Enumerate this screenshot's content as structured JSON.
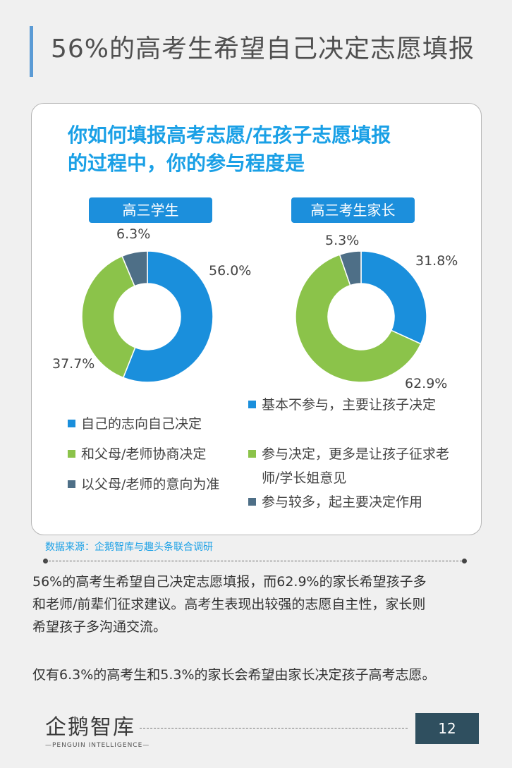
{
  "page": {
    "title": "56%的高考生希望自己决定志愿填报",
    "question_line1": "你如何填报高考志愿/在孩子志愿填报",
    "question_line2": "的过程中，你的参与程度是",
    "source": "数据来源：企鹅智库与趣头条联合调研",
    "paragraph1_line1": "56%的高考生希望自己决定志愿填报，而62.9%的家长希望孩子多",
    "paragraph1_line2": "和老师/前辈们征求建议。高考生表现出较强的志愿自主性，家长则",
    "paragraph1_line3": "希望孩子多沟通交流。",
    "paragraph2": "仅有6.3%的高考生和5.3%的家长会希望由家长决定孩子高考志愿。",
    "logo_main": "企鹅智库",
    "logo_sub": "—PENGUIN INTELLIGENCE—",
    "page_number": "12"
  },
  "colors": {
    "blue": "#1a8fdc",
    "green": "#8bc34a",
    "slate": "#4e6f87"
  },
  "chart_data": [
    {
      "type": "pie",
      "title": "高三学生",
      "categories": [
        "自己的志向自己决定",
        "和父母/老师协商决定",
        "以父母/老师的意向为准"
      ],
      "values": [
        56.0,
        37.7,
        6.3
      ],
      "value_labels": [
        "56.0%",
        "37.7%",
        "6.3%"
      ],
      "legend": [
        "自己的志向自己决定",
        "和父母/老师协商决定",
        "以父母/老师的意向为准"
      ]
    },
    {
      "type": "pie",
      "title": "高三考生家长",
      "categories": [
        "基本不参与，主要让孩子决定",
        "参与决定，更多是让孩子征求老师/学长姐意见",
        "参与较多，起主要决定作用"
      ],
      "values": [
        31.8,
        62.9,
        5.3
      ],
      "value_labels": [
        "31.8%",
        "62.9%",
        "5.3%"
      ],
      "legend": [
        "基本不参与，主要让孩子决定",
        "参与决定，更多是让孩子征求老",
        "师/学长姐意见",
        "参与较多，起主要决定作用"
      ]
    }
  ]
}
